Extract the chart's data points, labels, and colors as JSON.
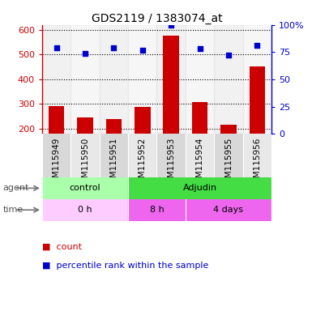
{
  "title": "GDS2119 / 1383074_at",
  "samples": [
    "GSM115949",
    "GSM115950",
    "GSM115951",
    "GSM115952",
    "GSM115953",
    "GSM115954",
    "GSM115955",
    "GSM115956"
  ],
  "counts": [
    293,
    247,
    238,
    290,
    578,
    307,
    217,
    453
  ],
  "percentile_ranks": [
    79,
    74,
    79,
    77,
    100,
    78,
    72,
    81
  ],
  "ylim_left": [
    180,
    620
  ],
  "ylim_right": [
    0,
    100
  ],
  "yticks_left": [
    200,
    300,
    400,
    500,
    600
  ],
  "yticks_right": [
    0,
    25,
    50,
    75,
    100
  ],
  "agent_groups": [
    {
      "label": "control",
      "span": [
        0,
        3
      ],
      "color": "#aaffaa"
    },
    {
      "label": "Adjudin",
      "span": [
        3,
        8
      ],
      "color": "#44dd44"
    }
  ],
  "time_groups": [
    {
      "label": "0 h",
      "span": [
        0,
        3
      ],
      "color": "#ffccff"
    },
    {
      "label": "8 h",
      "span": [
        3,
        5
      ],
      "color": "#ee66ee"
    },
    {
      "label": "4 days",
      "span": [
        5,
        8
      ],
      "color": "#ee66ee"
    }
  ],
  "bar_color": "#cc0000",
  "dot_color": "#0000cc",
  "left_axis_color": "#cc0000",
  "right_axis_color": "#0000cc",
  "title_fontsize": 10,
  "tick_fontsize": 8,
  "sample_label_fontsize": 7.5,
  "row_label_fontsize": 8,
  "legend_fontsize": 8,
  "col_bg_even": "#d8d8d8",
  "col_bg_odd": "#e8e8e8",
  "sample_row_bg": "#c8c8c8"
}
